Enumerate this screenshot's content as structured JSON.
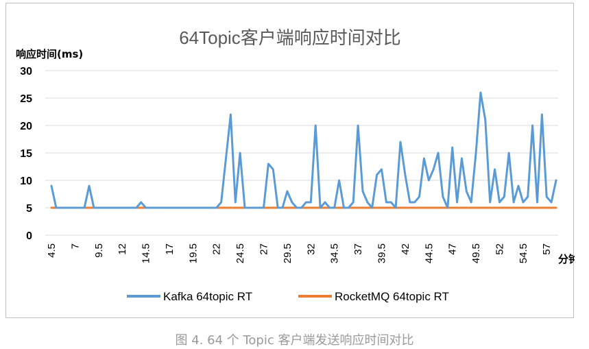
{
  "chart_data": {
    "type": "line",
    "title": "64Topic客户端响应时间对比",
    "ylabel": "响应时间(ms)",
    "xlabel": "分钟",
    "ylim": [
      0,
      30
    ],
    "yticks": [
      0,
      5,
      10,
      15,
      20,
      25,
      30
    ],
    "x_tick_labels": [
      "4.5",
      "7",
      "9.5",
      "12",
      "14.5",
      "17",
      "19.5",
      "22",
      "24.5",
      "27",
      "29.5",
      "32",
      "34.5",
      "37",
      "39.5",
      "42",
      "44.5",
      "47",
      "49.5",
      "52",
      "54.5",
      "57"
    ],
    "x_range": [
      4.5,
      58
    ],
    "grid": "horizontal",
    "legend_position": "bottom",
    "series": [
      {
        "name": "Kafka 64topic RT",
        "color": "#5b9bd5",
        "x": [
          4.5,
          5,
          5.5,
          6,
          6.5,
          7,
          7.5,
          8,
          8.5,
          9,
          9.5,
          10,
          10.5,
          11,
          11.5,
          12,
          12.5,
          13,
          13.5,
          14,
          14.5,
          15,
          15.5,
          16,
          16.5,
          17,
          17.5,
          18,
          18.5,
          19,
          19.5,
          20,
          20.5,
          21,
          21.5,
          22,
          22.5,
          23,
          23.5,
          24,
          24.5,
          25,
          25.5,
          26,
          26.5,
          27,
          27.5,
          28,
          28.5,
          29,
          29.5,
          30,
          30.5,
          31,
          31.5,
          32,
          32.5,
          33,
          33.5,
          34,
          34.5,
          35,
          35.5,
          36,
          36.5,
          37,
          37.5,
          38,
          38.5,
          39,
          39.5,
          40,
          40.5,
          41,
          41.5,
          42,
          42.5,
          43,
          43.5,
          44,
          44.5,
          45,
          45.5,
          46,
          46.5,
          47,
          47.5,
          48,
          48.5,
          49,
          49.5,
          50,
          50.5,
          51,
          51.5,
          52,
          52.5,
          53,
          53.5,
          54,
          54.5,
          55,
          55.5,
          56,
          56.5,
          57,
          57.5,
          58
        ],
        "values": [
          9,
          5,
          5,
          5,
          5,
          5,
          5,
          5,
          9,
          5,
          5,
          5,
          5,
          5,
          5,
          5,
          5,
          5,
          5,
          6,
          5,
          5,
          5,
          5,
          5,
          5,
          5,
          5,
          5,
          5,
          5,
          5,
          5,
          5,
          5,
          5,
          6,
          14,
          22,
          6,
          15,
          5,
          5,
          5,
          5,
          5,
          13,
          12,
          5,
          5,
          8,
          6,
          5,
          5,
          6,
          6,
          20,
          5,
          6,
          5,
          5,
          10,
          5,
          5,
          6,
          20,
          8,
          6,
          5,
          11,
          12,
          6,
          6,
          5,
          17,
          11,
          6,
          6,
          7,
          14,
          10,
          12,
          15,
          7,
          5,
          16,
          6,
          14,
          8,
          6,
          15,
          26,
          21,
          6,
          12,
          6,
          7,
          15,
          6,
          9,
          6,
          7,
          20,
          6,
          22,
          7,
          6,
          10
        ]
      },
      {
        "name": "RocketMQ 64topic RT",
        "color": "#ed7d31",
        "x": [
          4.5,
          58
        ],
        "values": [
          5,
          5
        ]
      }
    ]
  },
  "caption": "图 4. 64 个 Topic 客户端发送响应时间对比"
}
